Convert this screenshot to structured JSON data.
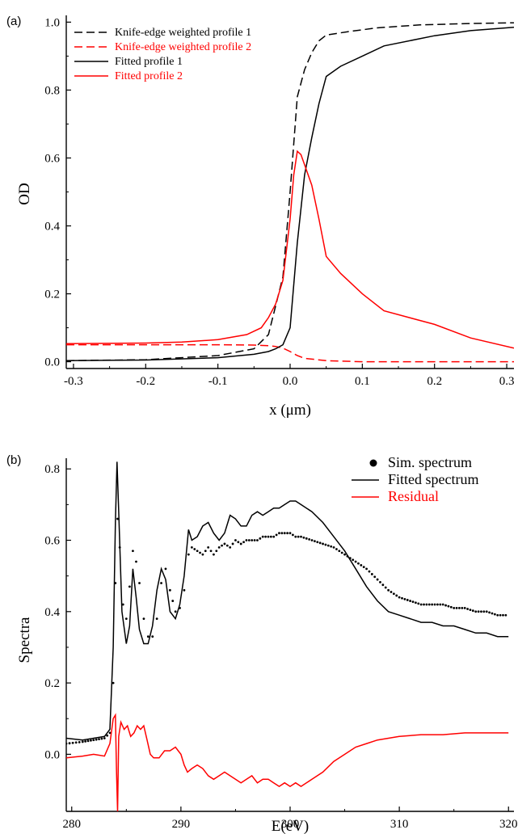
{
  "chart_data": [
    {
      "panel": "(a)",
      "type": "line",
      "xlabel": "x (μm)",
      "ylabel": "OD",
      "xlim": [
        -0.31,
        0.31
      ],
      "ylim": [
        -0.02,
        1.02
      ],
      "xticks": [
        -0.3,
        -0.2,
        -0.1,
        0.0,
        0.1,
        0.2,
        0.3
      ],
      "xtick_labels": [
        "-0.3",
        "-0.2",
        "-0.1",
        "0.0",
        "0.1",
        "0.2",
        "0.3"
      ],
      "yticks": [
        0.0,
        0.2,
        0.4,
        0.6,
        0.8,
        1.0
      ],
      "ytick_labels": [
        "0.0",
        "0.2",
        "0.4",
        "0.6",
        "0.8",
        "1.0"
      ],
      "legend_position": "top-left",
      "series": [
        {
          "name": "Knife-edge weighted profile 1",
          "color": "#000000",
          "dash": "dashed",
          "x": [
            -0.31,
            -0.2,
            -0.1,
            -0.05,
            -0.03,
            -0.01,
            0.0,
            0.01,
            0.02,
            0.03,
            0.04,
            0.05,
            0.08,
            0.12,
            0.18,
            0.25,
            0.31
          ],
          "y": [
            0.003,
            0.006,
            0.018,
            0.038,
            0.08,
            0.25,
            0.5,
            0.78,
            0.86,
            0.91,
            0.945,
            0.962,
            0.972,
            0.983,
            0.992,
            0.996,
            0.998
          ]
        },
        {
          "name": "Knife-edge weighted profile 2",
          "color": "#ff0000",
          "dash": "dashed",
          "x": [
            -0.31,
            -0.2,
            -0.1,
            -0.05,
            -0.03,
            -0.02,
            -0.01,
            0.0,
            0.01,
            0.02,
            0.05,
            0.1,
            0.31
          ],
          "y": [
            0.05,
            0.05,
            0.05,
            0.049,
            0.047,
            0.045,
            0.04,
            0.03,
            0.018,
            0.01,
            0.003,
            0.0,
            0.0
          ]
        },
        {
          "name": "Fitted profile 1",
          "color": "#000000",
          "dash": "solid",
          "x": [
            -0.31,
            -0.2,
            -0.1,
            -0.05,
            -0.03,
            -0.02,
            -0.01,
            0.0,
            0.01,
            0.02,
            0.03,
            0.04,
            0.05,
            0.07,
            0.1,
            0.13,
            0.2,
            0.25,
            0.31
          ],
          "y": [
            0.003,
            0.005,
            0.012,
            0.022,
            0.03,
            0.038,
            0.05,
            0.1,
            0.35,
            0.55,
            0.66,
            0.76,
            0.84,
            0.87,
            0.9,
            0.93,
            0.96,
            0.975,
            0.985
          ]
        },
        {
          "name": "Fitted profile 2",
          "color": "#ff0000",
          "dash": "solid",
          "x": [
            -0.31,
            -0.2,
            -0.15,
            -0.1,
            -0.06,
            -0.04,
            -0.03,
            -0.02,
            -0.01,
            0.0,
            0.005,
            0.01,
            0.015,
            0.02,
            0.03,
            0.04,
            0.05,
            0.07,
            0.1,
            0.13,
            0.2,
            0.25,
            0.31
          ],
          "y": [
            0.053,
            0.055,
            0.058,
            0.065,
            0.08,
            0.1,
            0.13,
            0.17,
            0.24,
            0.42,
            0.55,
            0.62,
            0.61,
            0.58,
            0.52,
            0.42,
            0.31,
            0.26,
            0.2,
            0.15,
            0.11,
            0.07,
            0.04
          ]
        }
      ]
    },
    {
      "panel": "(b)",
      "type": "line",
      "xlabel": "E(eV)",
      "ylabel": "Spectra",
      "xlim": [
        279.5,
        320.5
      ],
      "ylim": [
        -0.16,
        0.83
      ],
      "xticks": [
        280,
        290,
        300,
        310,
        320
      ],
      "xtick_labels": [
        "280",
        "290",
        "300",
        "310",
        "320"
      ],
      "yticks": [
        0.0,
        0.2,
        0.4,
        0.6,
        0.8
      ],
      "ytick_labels": [
        "0.0",
        "0.2",
        "0.4",
        "0.6",
        "0.8"
      ],
      "legend_position": "top-right",
      "series": [
        {
          "name": "Sim. spectrum",
          "color": "#000000",
          "style": "dots",
          "x": [
            279.5,
            281,
            282,
            283,
            283.5,
            283.8,
            284.0,
            284.2,
            284.4,
            284.7,
            285.0,
            285.3,
            285.6,
            285.9,
            286.2,
            286.6,
            287.0,
            287.4,
            287.8,
            288.2,
            288.6,
            289.0,
            289.5,
            289.9,
            290.3,
            290.7,
            291.0,
            291.5,
            292.0,
            292.5,
            293.0,
            293.5,
            294.0,
            294.5,
            295.0,
            295.5,
            296.0,
            296.5,
            297.0,
            297.5,
            298.0,
            298.5,
            299.0,
            299.5,
            300.0,
            300.5,
            301.0,
            302.0,
            303.0,
            304.0,
            305.0,
            306.0,
            307.0,
            308.0,
            309.0,
            310.0,
            311.0,
            312.0,
            313.0,
            314.0,
            315.0,
            316.0,
            317.0,
            318.0,
            319.0,
            320.0
          ],
          "y": [
            0.03,
            0.035,
            0.04,
            0.045,
            0.06,
            0.2,
            0.48,
            0.66,
            0.58,
            0.42,
            0.38,
            0.47,
            0.57,
            0.54,
            0.48,
            0.38,
            0.33,
            0.33,
            0.38,
            0.48,
            0.52,
            0.46,
            0.4,
            0.41,
            0.46,
            0.56,
            0.58,
            0.57,
            0.56,
            0.58,
            0.56,
            0.58,
            0.59,
            0.58,
            0.6,
            0.59,
            0.6,
            0.6,
            0.6,
            0.61,
            0.61,
            0.61,
            0.62,
            0.62,
            0.62,
            0.61,
            0.61,
            0.6,
            0.59,
            0.58,
            0.56,
            0.54,
            0.52,
            0.49,
            0.46,
            0.44,
            0.43,
            0.42,
            0.42,
            0.42,
            0.41,
            0.41,
            0.4,
            0.4,
            0.39,
            0.39
          ]
        },
        {
          "name": "Fitted spectrum",
          "color": "#000000",
          "style": "solid",
          "x": [
            279.5,
            281,
            282,
            283,
            283.5,
            283.8,
            284.0,
            284.15,
            284.3,
            284.6,
            285.0,
            285.3,
            285.6,
            285.9,
            286.2,
            286.6,
            287.0,
            287.4,
            287.8,
            288.2,
            288.6,
            289.0,
            289.5,
            289.9,
            290.3,
            290.7,
            291.0,
            291.5,
            292.0,
            292.5,
            293.0,
            293.5,
            294.0,
            294.5,
            295.0,
            295.5,
            296.0,
            296.5,
            297.0,
            297.5,
            298.0,
            298.5,
            299.0,
            299.5,
            300.0,
            300.5,
            301.0,
            302.0,
            303.0,
            304.0,
            305.0,
            306.0,
            307.0,
            308.0,
            309.0,
            310.0,
            311.0,
            312.0,
            313.0,
            314.0,
            315.0,
            316.0,
            317.0,
            318.0,
            319.0,
            320.0
          ],
          "y": [
            0.045,
            0.04,
            0.045,
            0.05,
            0.07,
            0.3,
            0.65,
            0.82,
            0.68,
            0.4,
            0.31,
            0.36,
            0.52,
            0.44,
            0.35,
            0.31,
            0.31,
            0.36,
            0.46,
            0.52,
            0.49,
            0.4,
            0.38,
            0.42,
            0.5,
            0.63,
            0.6,
            0.61,
            0.64,
            0.65,
            0.62,
            0.6,
            0.62,
            0.67,
            0.66,
            0.64,
            0.64,
            0.67,
            0.68,
            0.67,
            0.68,
            0.69,
            0.69,
            0.7,
            0.71,
            0.71,
            0.7,
            0.68,
            0.65,
            0.61,
            0.57,
            0.52,
            0.47,
            0.43,
            0.4,
            0.39,
            0.38,
            0.37,
            0.37,
            0.36,
            0.36,
            0.35,
            0.34,
            0.34,
            0.33,
            0.33
          ]
        },
        {
          "name": "Residual",
          "color": "#ff0000",
          "style": "solid",
          "x": [
            279.5,
            281,
            282,
            283,
            283.5,
            283.8,
            284.0,
            284.1,
            284.2,
            284.3,
            284.5,
            284.8,
            285.1,
            285.4,
            285.7,
            286.0,
            286.3,
            286.6,
            286.9,
            287.2,
            287.5,
            288.0,
            288.5,
            289.0,
            289.5,
            290.0,
            290.3,
            290.6,
            291.0,
            291.5,
            292.0,
            292.5,
            293.0,
            293.5,
            294.0,
            294.5,
            295.0,
            295.5,
            296.0,
            296.5,
            297.0,
            297.5,
            298.0,
            298.5,
            299.0,
            299.5,
            300.0,
            300.5,
            301.0,
            302.0,
            303.0,
            304.0,
            305.0,
            306.0,
            307.0,
            308.0,
            309.0,
            310.0,
            312.0,
            314.0,
            316.0,
            318.0,
            320.0
          ],
          "y": [
            -0.01,
            -0.005,
            0.0,
            -0.005,
            0.03,
            0.1,
            0.11,
            -0.05,
            -0.16,
            0.05,
            0.09,
            0.07,
            0.08,
            0.05,
            0.06,
            0.08,
            0.07,
            0.08,
            0.04,
            0.0,
            -0.01,
            -0.01,
            0.01,
            0.01,
            0.02,
            0.0,
            -0.03,
            -0.05,
            -0.04,
            -0.03,
            -0.04,
            -0.06,
            -0.07,
            -0.06,
            -0.05,
            -0.06,
            -0.07,
            -0.08,
            -0.07,
            -0.06,
            -0.08,
            -0.07,
            -0.07,
            -0.08,
            -0.09,
            -0.08,
            -0.09,
            -0.08,
            -0.09,
            -0.07,
            -0.05,
            -0.02,
            0.0,
            0.02,
            0.03,
            0.04,
            0.045,
            0.05,
            0.055,
            0.055,
            0.06,
            0.06,
            0.06
          ]
        }
      ]
    }
  ]
}
